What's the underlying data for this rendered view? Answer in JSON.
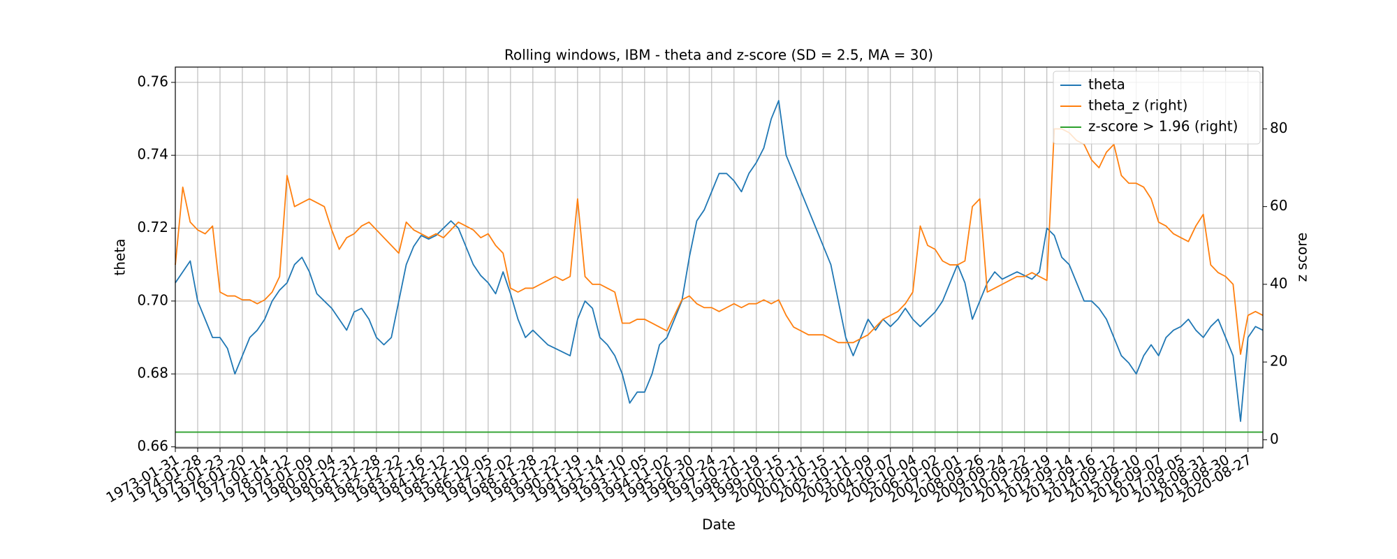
{
  "chart_data": {
    "type": "line",
    "title": "Rolling windows, IBM - theta and z-score (SD = 2.5, MA = 30)",
    "x_label": "Date",
    "y_label": "theta",
    "y2_label": "z score",
    "categories": [
      "1973-01-31",
      null,
      null,
      "1974-01-28",
      null,
      null,
      "1975-01-23",
      null,
      null,
      "1976-01-20",
      null,
      null,
      "1977-01-14",
      null,
      null,
      "1978-01-12",
      null,
      null,
      "1979-01-09",
      null,
      null,
      "1980-01-04",
      null,
      null,
      "1980-12-31",
      null,
      null,
      "1981-12-28",
      null,
      null,
      "1982-12-22",
      null,
      null,
      "1983-12-16",
      null,
      null,
      "1984-12-12",
      null,
      null,
      "1985-12-10",
      null,
      null,
      "1986-12-05",
      null,
      null,
      "1987-12-02",
      null,
      null,
      "1988-11-28",
      null,
      null,
      "1989-11-22",
      null,
      null,
      "1990-11-19",
      null,
      null,
      "1991-11-14",
      null,
      null,
      "1992-11-10",
      null,
      null,
      "1993-11-05",
      null,
      null,
      "1994-11-02",
      null,
      null,
      "1995-10-30",
      null,
      null,
      "1996-10-24",
      null,
      null,
      "1997-10-21",
      null,
      null,
      "1998-10-19",
      null,
      null,
      "1999-10-15",
      null,
      null,
      "2000-10-11",
      null,
      null,
      "2001-10-15",
      null,
      null,
      "2002-10-11",
      null,
      null,
      "2003-10-09",
      null,
      null,
      "2004-10-07",
      null,
      null,
      "2005-10-04",
      null,
      null,
      "2006-10-02",
      null,
      null,
      "2007-10-01",
      null,
      null,
      "2008-09-26",
      null,
      null,
      "2009-09-24",
      null,
      null,
      "2010-09-22",
      null,
      null,
      "2011-09-19",
      null,
      null,
      "2012-09-14",
      null,
      null,
      "2013-09-16",
      null,
      null,
      "2014-09-12",
      null,
      null,
      "2015-09-10",
      null,
      null,
      "2016-09-07",
      null,
      null,
      "2017-09-05",
      null,
      null,
      "2018-08-31",
      null,
      null,
      "2019-08-30",
      null,
      null,
      "2020-08-27",
      null,
      null
    ],
    "series": [
      {
        "name": "theta",
        "color": "#1f77b4",
        "values": [
          0.705,
          0.708,
          0.711,
          0.7,
          0.695,
          0.69,
          0.69,
          0.687,
          0.68,
          0.685,
          0.69,
          0.692,
          0.695,
          0.7,
          0.703,
          0.705,
          0.71,
          0.712,
          0.708,
          0.702,
          0.7,
          0.698,
          0.695,
          0.692,
          0.697,
          0.698,
          0.695,
          0.69,
          0.688,
          0.69,
          0.7,
          0.71,
          0.715,
          0.718,
          0.717,
          0.718,
          0.72,
          0.722,
          0.72,
          0.715,
          0.71,
          0.707,
          0.705,
          0.702,
          0.708,
          0.702,
          0.695,
          0.69,
          0.692,
          0.69,
          0.688,
          0.687,
          0.686,
          0.685,
          0.695,
          0.7,
          0.698,
          0.69,
          0.688,
          0.685,
          0.68,
          0.672,
          0.675,
          0.675,
          0.68,
          0.688,
          0.69,
          0.695,
          0.7,
          0.712,
          0.722,
          0.725,
          0.73,
          0.735,
          0.735,
          0.733,
          0.73,
          0.735,
          0.738,
          0.742,
          0.75,
          0.755,
          0.74,
          0.735,
          0.73,
          0.725,
          0.72,
          0.715,
          0.71,
          0.7,
          0.69,
          0.685,
          0.69,
          0.695,
          0.692,
          0.695,
          0.693,
          0.695,
          0.698,
          0.695,
          0.693,
          0.695,
          0.697,
          0.7,
          0.705,
          0.71,
          0.705,
          0.695,
          0.7,
          0.705,
          0.708,
          0.706,
          0.707,
          0.708,
          0.707,
          0.706,
          0.708,
          0.72,
          0.718,
          0.712,
          0.71,
          0.705,
          0.7,
          0.7,
          0.698,
          0.695,
          0.69,
          0.685,
          0.683,
          0.68,
          0.685,
          0.688,
          0.685,
          0.69,
          0.692,
          0.693,
          0.695,
          0.692,
          0.69,
          0.693,
          0.695,
          0.69,
          0.685,
          0.667,
          0.69,
          0.693,
          0.692
        ]
      },
      {
        "name": "theta_z (right)",
        "color": "#ff7f0e",
        "axis": "y2",
        "values": [
          45,
          65,
          56,
          54,
          53,
          55,
          38,
          37,
          37,
          36,
          36,
          35,
          36,
          38,
          42,
          68,
          60,
          61,
          62,
          61,
          60,
          54,
          49,
          52,
          53,
          55,
          56,
          54,
          52,
          50,
          48,
          56,
          54,
          53,
          52,
          53,
          52,
          54,
          56,
          55,
          54,
          52,
          53,
          50,
          48,
          39,
          38,
          39,
          39,
          40,
          41,
          42,
          41,
          42,
          62,
          42,
          40,
          40,
          39,
          38,
          30,
          30,
          31,
          31,
          30,
          29,
          28,
          32,
          36,
          37,
          35,
          34,
          34,
          33,
          34,
          35,
          34,
          35,
          35,
          36,
          35,
          36,
          32,
          29,
          28,
          27,
          27,
          27,
          26,
          25,
          25,
          25,
          26,
          27,
          29,
          31,
          32,
          33,
          35,
          38,
          55,
          50,
          49,
          46,
          45,
          45,
          46,
          60,
          62,
          38,
          39,
          40,
          41,
          42,
          42,
          43,
          42,
          41,
          80,
          80,
          79,
          77,
          76,
          72,
          70,
          74,
          76,
          68,
          66,
          66,
          65,
          62,
          56,
          55,
          53,
          52,
          51,
          55,
          58,
          45,
          43,
          42,
          40,
          22,
          32,
          33,
          32
        ]
      },
      {
        "name": "z-score > 1.96 (right)",
        "color": "#2ca02c",
        "axis": "y2",
        "values": [
          1.96,
          1.96,
          1.96,
          1.96,
          1.96,
          1.96,
          1.96,
          1.96,
          1.96,
          1.96,
          1.96,
          1.96,
          1.96,
          1.96,
          1.96,
          1.96,
          1.96,
          1.96,
          1.96,
          1.96,
          1.96,
          1.96,
          1.96,
          1.96,
          1.96,
          1.96,
          1.96,
          1.96,
          1.96,
          1.96,
          1.96,
          1.96,
          1.96,
          1.96,
          1.96,
          1.96,
          1.96,
          1.96,
          1.96,
          1.96,
          1.96,
          1.96,
          1.96,
          1.96,
          1.96,
          1.96,
          1.96,
          1.96,
          1.96,
          1.96,
          1.96,
          1.96,
          1.96,
          1.96,
          1.96,
          1.96,
          1.96,
          1.96,
          1.96,
          1.96,
          1.96,
          1.96,
          1.96,
          1.96,
          1.96,
          1.96,
          1.96,
          1.96,
          1.96,
          1.96,
          1.96,
          1.96,
          1.96,
          1.96,
          1.96,
          1.96,
          1.96,
          1.96,
          1.96,
          1.96,
          1.96,
          1.96,
          1.96,
          1.96,
          1.96,
          1.96,
          1.96,
          1.96,
          1.96,
          1.96,
          1.96,
          1.96,
          1.96,
          1.96,
          1.96,
          1.96,
          1.96,
          1.96,
          1.96,
          1.96,
          1.96,
          1.96,
          1.96,
          1.96,
          1.96,
          1.96,
          1.96,
          1.96,
          1.96,
          1.96,
          1.96,
          1.96,
          1.96,
          1.96,
          1.96,
          1.96,
          1.96,
          1.96,
          1.96,
          1.96,
          1.96,
          1.96,
          1.96,
          1.96,
          1.96,
          1.96,
          1.96,
          1.96,
          1.96,
          1.96,
          1.96,
          1.96,
          1.96,
          1.96,
          1.96,
          1.96,
          1.96,
          1.96,
          1.96,
          1.96,
          1.96,
          1.96,
          1.96,
          1.96,
          1.96,
          1.96,
          1.96
        ]
      }
    ],
    "ylim": [
      0.6597,
      0.7642
    ],
    "yticks": [
      0.66,
      0.68,
      {
        "value": 0.7,
        "label": "0.70"
      },
      0.72,
      0.74,
      0.76
    ],
    "y2lim": [
      -2.1,
      95.9
    ],
    "y2ticks": [
      0,
      20,
      40,
      60,
      80
    ],
    "grid": true,
    "legend": "upper right"
  }
}
